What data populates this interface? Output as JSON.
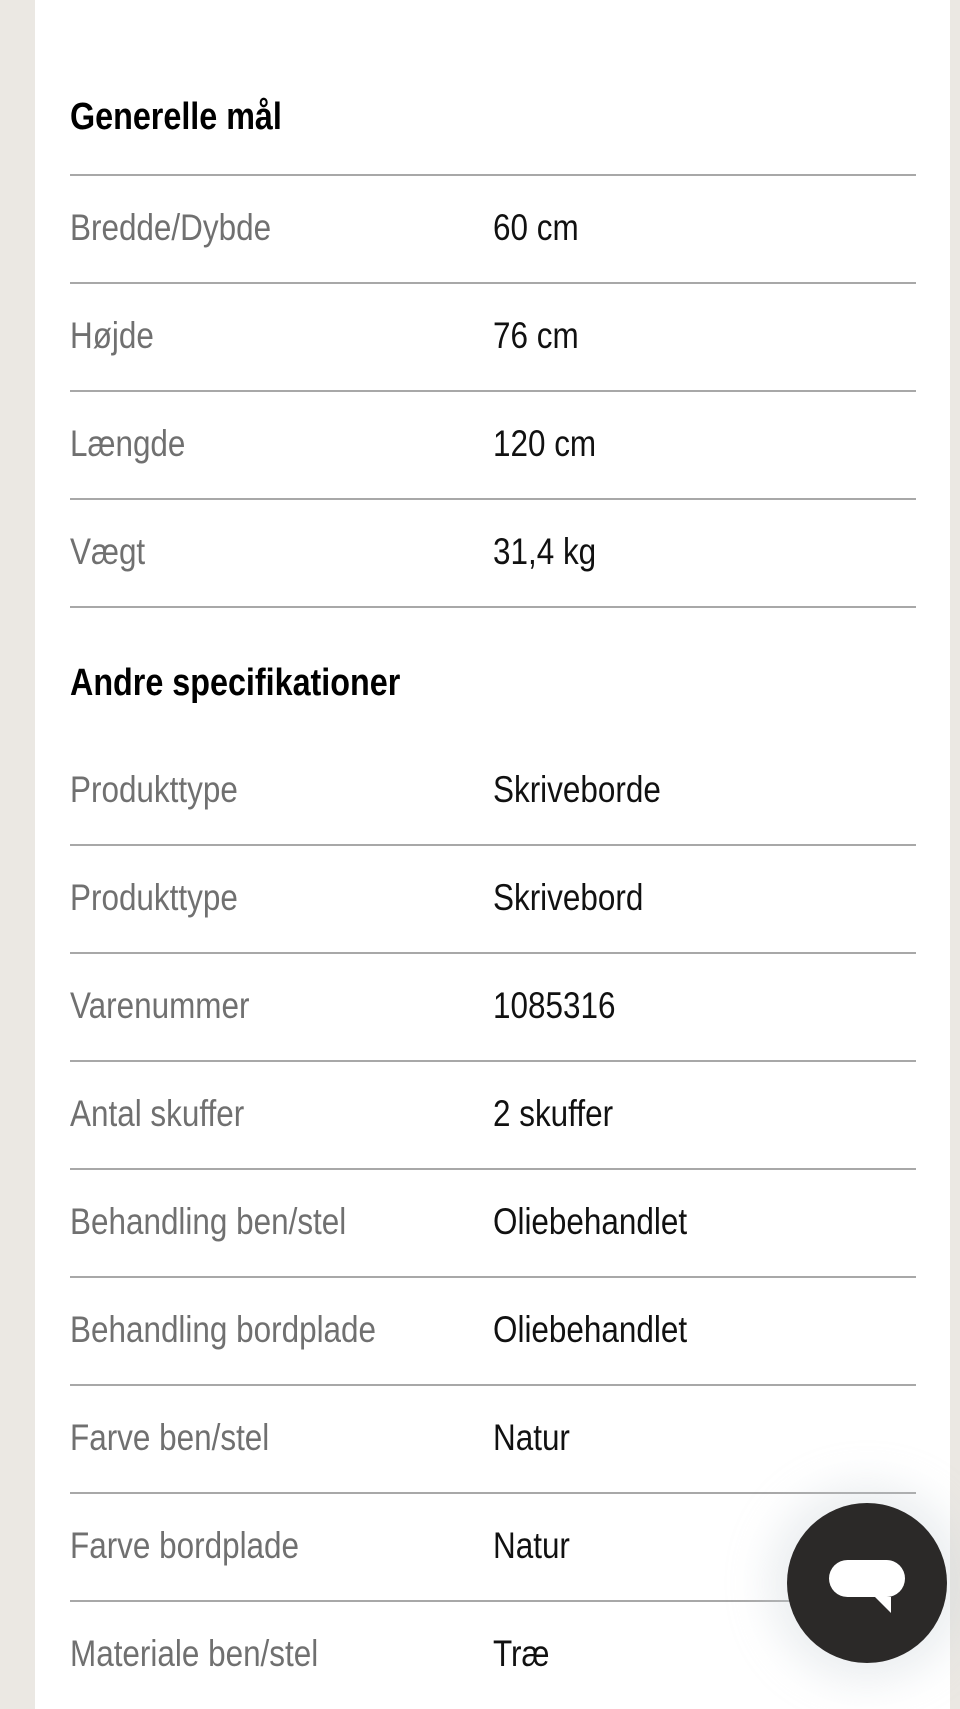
{
  "sections": [
    {
      "title": "Generelle mål",
      "rows": [
        {
          "label": "Bredde/Dybde",
          "value": "60 cm"
        },
        {
          "label": "Højde",
          "value": "76 cm"
        },
        {
          "label": "Længde",
          "value": "120 cm"
        },
        {
          "label": "Vægt",
          "value": "31,4 kg"
        }
      ]
    },
    {
      "title": "Andre specifikationer",
      "rows": [
        {
          "label": "Produkttype",
          "value": "Skriveborde"
        },
        {
          "label": "Produkttype",
          "value": "Skrivebord"
        },
        {
          "label": "Varenummer",
          "value": "1085316"
        },
        {
          "label": "Antal skuffer",
          "value": "2 skuffer"
        },
        {
          "label": "Behandling ben/stel",
          "value": "Oliebehandlet"
        },
        {
          "label": "Behandling bordplade",
          "value": "Oliebehandlet"
        },
        {
          "label": "Farve ben/stel",
          "value": "Natur"
        },
        {
          "label": "Farve bordplade",
          "value": "Natur"
        },
        {
          "label": "Materiale ben/stel",
          "value": "Træ"
        }
      ]
    }
  ],
  "chat_button": {
    "icon": "chat-bubble-icon",
    "color": "#2b2928"
  }
}
